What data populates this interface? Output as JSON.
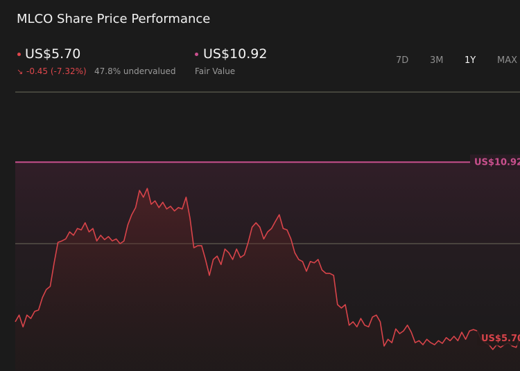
{
  "header": {
    "title": "MLCO Share Price Performance",
    "price": "US$5.70",
    "change": "-0.45 (-7.32%)",
    "valuation": "47.8% undervalued",
    "fair_value": "US$10.92",
    "fair_value_label": "Fair Value",
    "ranges": [
      "7D",
      "3M",
      "1Y",
      "MAX"
    ]
  },
  "chart_data": {
    "type": "line",
    "color": "#d9444a",
    "values": [
      6.18,
      6.38,
      6.03,
      6.38,
      6.28,
      6.49,
      6.53,
      6.9,
      7.14,
      7.23,
      7.92,
      8.54,
      8.58,
      8.64,
      8.85,
      8.75,
      8.95,
      8.91,
      9.12,
      8.85,
      8.95,
      8.58,
      8.75,
      8.62,
      8.71,
      8.58,
      8.64,
      8.5,
      8.58,
      9.06,
      9.36,
      9.57,
      10.08,
      9.88,
      10.14,
      9.67,
      9.77,
      9.57,
      9.73,
      9.53,
      9.61,
      9.47,
      9.57,
      9.53,
      9.88,
      9.26,
      8.38,
      8.44,
      8.44,
      8.03,
      7.56,
      8.03,
      8.13,
      7.88,
      8.34,
      8.23,
      8.03,
      8.34,
      8.09,
      8.17,
      8.54,
      8.99,
      9.12,
      8.99,
      8.64,
      8.85,
      8.95,
      9.16,
      9.36,
      8.95,
      8.91,
      8.64,
      8.23,
      8.03,
      7.97,
      7.68,
      7.97,
      7.93,
      8.03,
      7.72,
      7.62,
      7.62,
      7.56,
      6.69,
      6.59,
      6.69,
      6.08,
      6.18,
      6.03,
      6.28,
      6.08,
      6.03,
      6.32,
      6.38,
      6.18,
      5.46,
      5.66,
      5.56,
      5.97,
      5.83,
      5.91,
      6.08,
      5.87,
      5.56,
      5.62,
      5.5,
      5.66,
      5.56,
      5.5,
      5.62,
      5.54,
      5.71,
      5.62,
      5.75,
      5.62,
      5.87,
      5.66,
      5.91,
      5.95,
      5.91,
      5.66,
      5.56,
      5.5,
      5.36,
      5.5,
      5.42,
      5.5,
      5.56,
      5.46,
      5.42,
      5.7
    ],
    "ylim": [
      4.72,
      13
    ],
    "yticks": [
      13,
      8.5
    ],
    "grid": true,
    "fair_value": {
      "value": 10.92,
      "label": "US$10.92",
      "color": "#c9508e"
    },
    "last_price": {
      "value": 5.7,
      "label": "US$5.70"
    }
  }
}
